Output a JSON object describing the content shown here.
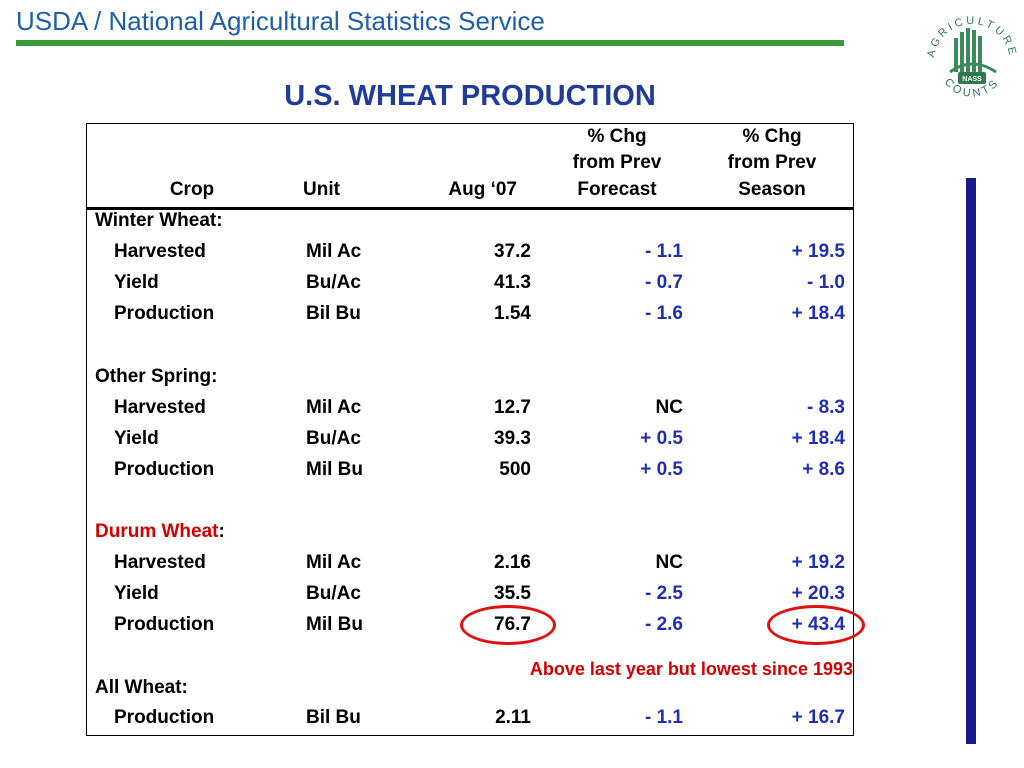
{
  "header": {
    "title": "USDA / National Agricultural Statistics Service"
  },
  "logo": {
    "ring_text": "AGRICULTURE",
    "bottom_text": "COUNTS",
    "badge": "NASS"
  },
  "slide": {
    "title": "U.S. WHEAT PRODUCTION"
  },
  "table": {
    "headers": {
      "crop": "Crop",
      "unit": "Unit",
      "aug": "Aug ‘07",
      "chg_prev_forecast": [
        "% Chg",
        "from Prev",
        "Forecast"
      ],
      "chg_prev_season": [
        "% Chg",
        "from Prev",
        "Season"
      ]
    },
    "sections": [
      {
        "label": "Winter Wheat:",
        "label_red": "",
        "label_suffix": "",
        "rows": [
          {
            "item": "Harvested",
            "unit": "Mil Ac",
            "aug": "37.2",
            "forecast": "- 1.1",
            "season": "+ 19.5"
          },
          {
            "item": "Yield",
            "unit": "Bu/Ac",
            "aug": "41.3",
            "forecast": "- 0.7",
            "season": "- 1.0"
          },
          {
            "item": "Production",
            "unit": "Bil Bu",
            "aug": "1.54",
            "forecast": "- 1.6",
            "season": "+ 18.4"
          }
        ]
      },
      {
        "label": "Other Spring:",
        "label_red": "",
        "label_suffix": "",
        "rows": [
          {
            "item": "Harvested",
            "unit": "Mil Ac",
            "aug": "12.7",
            "forecast": "NC",
            "season": "- 8.3"
          },
          {
            "item": "Yield",
            "unit": "Bu/Ac",
            "aug": "39.3",
            "forecast": "+ 0.5",
            "season": "+ 18.4"
          },
          {
            "item": "Production",
            "unit": "Mil Bu",
            "aug": "500",
            "forecast": "+ 0.5",
            "season": "+ 8.6"
          }
        ]
      },
      {
        "label": "",
        "label_red": "Durum Wheat",
        "label_suffix": ":",
        "rows": [
          {
            "item": "Harvested",
            "unit": "Mil Ac",
            "aug": "2.16",
            "forecast": "NC",
            "season": "+ 19.2"
          },
          {
            "item": "Yield",
            "unit": "Bu/Ac",
            "aug": "35.5",
            "forecast": "- 2.5",
            "season": "+ 20.3"
          },
          {
            "item": "Production",
            "unit": "Mil Bu",
            "aug": "76.7",
            "forecast": "- 2.6",
            "season": "+ 43.4"
          }
        ]
      },
      {
        "label": "All Wheat:",
        "label_red": "",
        "label_suffix": "",
        "rows": [
          {
            "item": "Production",
            "unit": "Bil Bu",
            "aug": "2.11",
            "forecast": "- 1.1",
            "season": "+ 16.7"
          }
        ]
      }
    ],
    "annotation": "Above last year but lowest since 1993"
  },
  "colors": {
    "header_text": "#1f5fa8",
    "green_rule": "#3a9a3a",
    "title": "#1f3c99",
    "change_values": "#1f2fb0",
    "highlight_red": "#d40000",
    "side_bar": "#1a1a8c"
  }
}
